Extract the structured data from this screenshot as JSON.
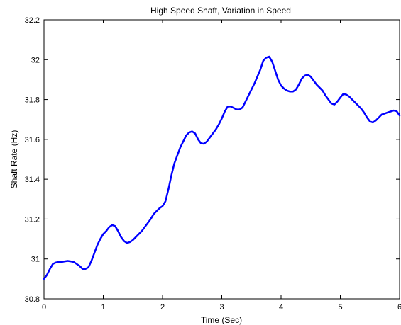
{
  "chart_data": {
    "type": "line",
    "title": "High Speed Shaft, Variation in Speed",
    "xlabel": "Time (Sec)",
    "ylabel": "Shaft Rate (Hz)",
    "xlim": [
      0,
      6
    ],
    "ylim": [
      30.8,
      32.2
    ],
    "xticks": [
      0,
      1,
      2,
      3,
      4,
      5,
      6
    ],
    "xtick_labels": [
      "0",
      "1",
      "2",
      "3",
      "4",
      "5",
      "6"
    ],
    "yticks": [
      30.8,
      31.0,
      31.2,
      31.4,
      31.6,
      31.8,
      32.0,
      32.2
    ],
    "ytick_labels": [
      "30.8",
      "31",
      "31.2",
      "31.4",
      "31.6",
      "31.8",
      "32",
      "32.2"
    ],
    "grid": false,
    "line_color": "#0000ff",
    "series": [
      {
        "x": [
          0.0,
          0.05,
          0.1,
          0.15,
          0.2,
          0.25,
          0.3,
          0.35,
          0.4,
          0.45,
          0.5,
          0.55,
          0.6,
          0.65,
          0.7,
          0.75,
          0.8,
          0.85,
          0.9,
          0.95,
          1.0,
          1.05,
          1.1,
          1.15,
          1.2,
          1.25,
          1.3,
          1.35,
          1.4,
          1.45,
          1.5,
          1.55,
          1.6,
          1.65,
          1.7,
          1.75,
          1.8,
          1.85,
          1.9,
          1.95,
          2.0,
          2.05,
          2.1,
          2.15,
          2.2,
          2.25,
          2.3,
          2.35,
          2.4,
          2.45,
          2.5,
          2.55,
          2.6,
          2.65,
          2.7,
          2.75,
          2.8,
          2.85,
          2.9,
          2.95,
          3.0,
          3.05,
          3.1,
          3.15,
          3.2,
          3.25,
          3.3,
          3.35,
          3.4,
          3.45,
          3.5,
          3.55,
          3.6,
          3.65,
          3.7,
          3.75,
          3.8,
          3.85,
          3.9,
          3.95,
          4.0,
          4.05,
          4.1,
          4.15,
          4.2,
          4.25,
          4.3,
          4.35,
          4.4,
          4.45,
          4.5,
          4.55,
          4.6,
          4.65,
          4.7,
          4.75,
          4.8,
          4.85,
          4.9,
          4.95,
          5.0,
          5.05,
          5.1,
          5.15,
          5.2,
          5.25,
          5.3,
          5.35,
          5.4,
          5.45,
          5.5,
          5.55,
          5.6,
          5.65,
          5.7,
          5.75,
          5.8,
          5.85,
          5.9,
          5.95,
          6.0
        ],
        "values": [
          30.9,
          30.92,
          30.95,
          30.975,
          30.982,
          30.985,
          30.985,
          30.988,
          30.99,
          30.988,
          30.985,
          30.975,
          30.965,
          30.95,
          30.95,
          30.958,
          30.99,
          31.03,
          31.07,
          31.1,
          31.125,
          31.14,
          31.16,
          31.17,
          31.165,
          31.14,
          31.11,
          31.09,
          31.08,
          31.085,
          31.095,
          31.11,
          31.125,
          31.14,
          31.16,
          31.18,
          31.2,
          31.225,
          31.24,
          31.255,
          31.265,
          31.29,
          31.35,
          31.42,
          31.48,
          31.52,
          31.56,
          31.59,
          31.62,
          31.635,
          31.64,
          31.63,
          31.6,
          31.58,
          31.578,
          31.59,
          31.61,
          31.63,
          31.65,
          31.675,
          31.705,
          31.74,
          31.765,
          31.765,
          31.758,
          31.75,
          31.75,
          31.76,
          31.79,
          31.82,
          31.85,
          31.88,
          31.915,
          31.95,
          31.995,
          32.01,
          32.015,
          31.99,
          31.945,
          31.9,
          31.87,
          31.855,
          31.845,
          31.84,
          31.84,
          31.85,
          31.875,
          31.905,
          31.92,
          31.925,
          31.915,
          31.895,
          31.875,
          31.86,
          31.845,
          31.82,
          31.8,
          31.78,
          31.775,
          31.79,
          31.81,
          31.828,
          31.825,
          31.815,
          31.8,
          31.785,
          31.77,
          31.755,
          31.735,
          31.71,
          31.69,
          31.685,
          31.695,
          31.71,
          31.725,
          31.73,
          31.735,
          31.74,
          31.745,
          31.742,
          31.72
        ]
      }
    ]
  }
}
